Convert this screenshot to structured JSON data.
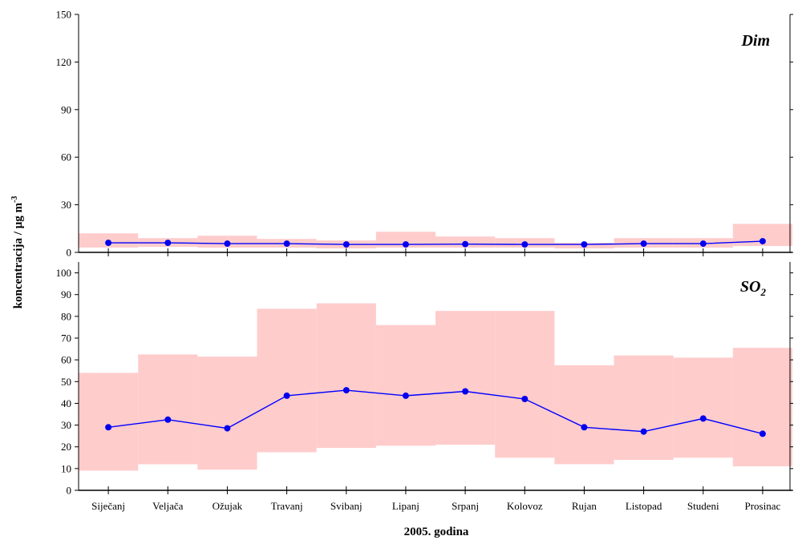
{
  "chart_data": {
    "type": "line",
    "xlabel": "2005. godina",
    "ylabel": "koncentracija / µg m",
    "ylabel_superscript": "-3",
    "categories": [
      "Siječanj",
      "Veljača",
      "Ožujak",
      "Travanj",
      "Svibanj",
      "Lipanj",
      "Srpanj",
      "Kolovoz",
      "Rujan",
      "Listopad",
      "Studeni",
      "Prosinac"
    ],
    "colors": {
      "line": "#0000ff",
      "marker": "#0000ee",
      "band": "#ffcccc"
    },
    "panels": [
      {
        "title": "Dim",
        "title_sub": "",
        "ylim": [
          0,
          150
        ],
        "yticks": [
          0,
          30,
          60,
          90,
          120,
          150
        ],
        "series": [
          {
            "values": [
              6,
              6,
              5.5,
              5.5,
              5,
              5,
              5.2,
              5,
              5,
              5.5,
              5.5,
              7
            ],
            "band_low": [
              3,
              3.5,
              3,
              3,
              2.5,
              3,
              3,
              3,
              2.5,
              3,
              3,
              4
            ],
            "band_high": [
              12,
              9,
              10.5,
              8.5,
              7.5,
              13,
              10,
              9,
              6,
              9,
              9,
              18
            ]
          }
        ]
      },
      {
        "title": "SO",
        "title_sub": "2",
        "ylim": [
          0,
          105
        ],
        "yticks": [
          0,
          10,
          20,
          30,
          40,
          50,
          60,
          70,
          80,
          90,
          100
        ],
        "series": [
          {
            "values": [
              29,
              32.5,
              28.5,
              43.5,
              46,
              43.5,
              45.5,
              42,
              29,
              27,
              33,
              26
            ],
            "band_low": [
              9,
              12,
              9.5,
              17.5,
              19.5,
              20.5,
              21,
              15,
              12,
              14,
              15,
              11
            ],
            "band_high": [
              54,
              62.5,
              61.5,
              83.5,
              86,
              76,
              82.5,
              82.5,
              57.5,
              62,
              61,
              65.5
            ]
          }
        ]
      }
    ]
  }
}
